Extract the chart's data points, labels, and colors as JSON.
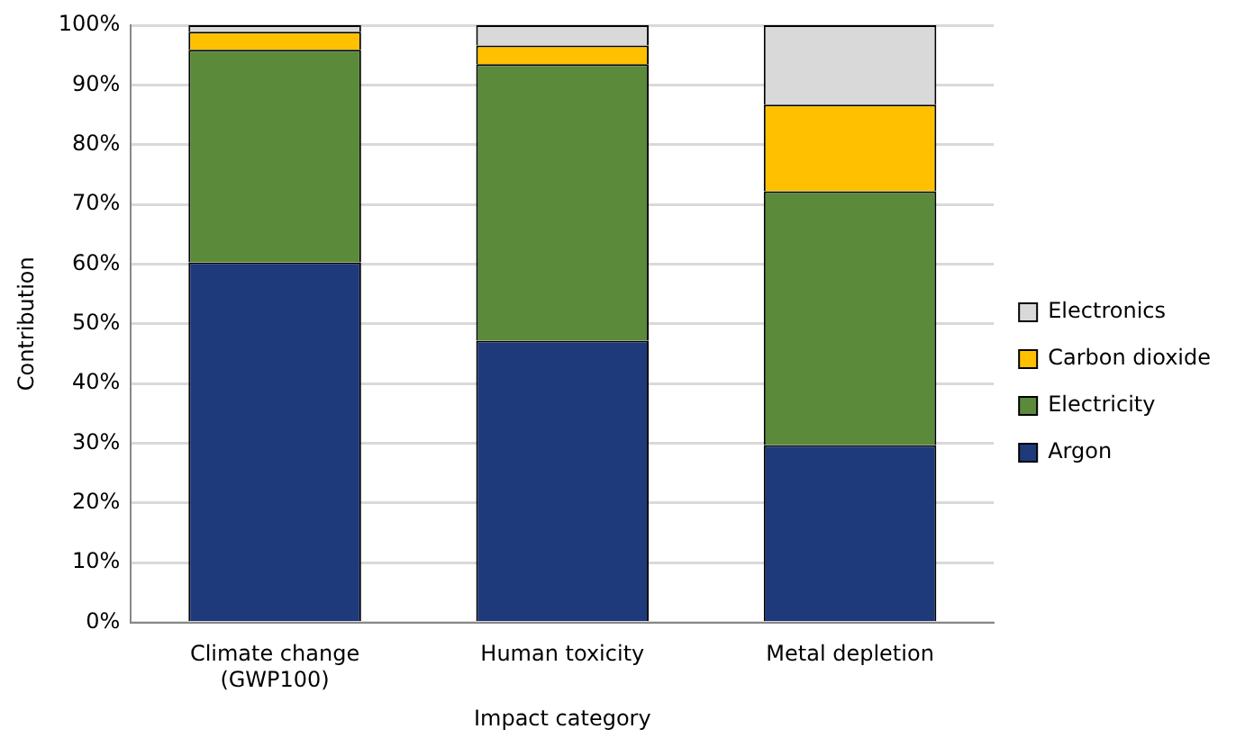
{
  "chart_data": {
    "type": "bar",
    "stacked": true,
    "xlabel": "Impact category",
    "ylabel": "Contribution",
    "categories": [
      "Climate change (GWP100)",
      "Human toxicity",
      "Metal depletion"
    ],
    "series": [
      {
        "name": "Argon",
        "color": "#1f3a7a",
        "values": [
          60.3,
          47.2,
          29.7
        ]
      },
      {
        "name": "Electricity",
        "color": "#5b8a3a",
        "values": [
          35.6,
          46.3,
          42.5
        ]
      },
      {
        "name": "Carbon dioxide",
        "color": "#ffc000",
        "values": [
          3,
          3.1,
          14.5
        ]
      },
      {
        "name": "Electronics",
        "color": "#d9d9d9",
        "values": [
          1.1,
          3.4,
          13.3
        ]
      }
    ],
    "ylim": [
      0,
      100
    ],
    "yticks": [
      {
        "value": 0,
        "label": "0%"
      },
      {
        "value": 10,
        "label": "10%"
      },
      {
        "value": 20,
        "label": "20%"
      },
      {
        "value": 30,
        "label": "30%"
      },
      {
        "value": 40,
        "label": "40%"
      },
      {
        "value": 50,
        "label": "50%"
      },
      {
        "value": 60,
        "label": "60%"
      },
      {
        "value": 70,
        "label": "70%"
      },
      {
        "value": 80,
        "label": "80%"
      },
      {
        "value": 90,
        "label": "90%"
      },
      {
        "value": 100,
        "label": "100%"
      }
    ],
    "grid": "y",
    "legend": "right"
  }
}
